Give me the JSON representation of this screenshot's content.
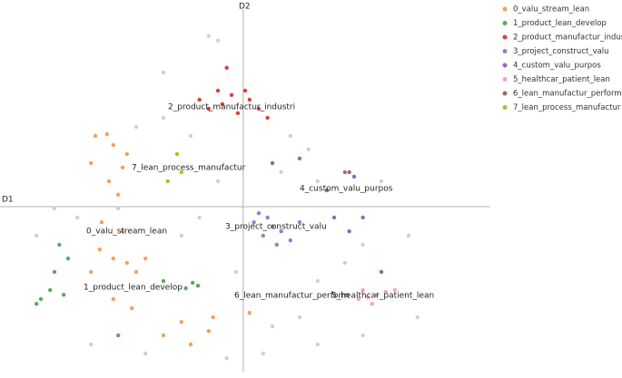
{
  "chart_data": {
    "type": "scatter",
    "xlabel": "D1",
    "ylabel": "D2",
    "xlim": [
      -5,
      5.08
    ],
    "ylim": [
      -4.55,
      5.45
    ],
    "series": [
      {
        "name": "0_valu_stream_lean",
        "color": "#f5a05a",
        "x": [
          -3.04,
          -2.8,
          -2.67,
          -3.13,
          -2.48,
          -2.76,
          -2.57,
          -2.39,
          -2.91,
          -2.48,
          -2.95,
          -2.67,
          -2.39,
          -3.13,
          -2.2,
          -2.01,
          -1.27,
          -0.71,
          -1.08,
          -0.62,
          -2.67,
          -2.29,
          -1.64,
          0.13
        ],
        "values": [
          1.95,
          2.0,
          1.7,
          1.2,
          1.08,
          0.7,
          0.33,
          1.45,
          -0.43,
          -0.68,
          -1.18,
          -1.43,
          -1.55,
          -1.8,
          -1.8,
          -1.43,
          -3.18,
          -3.43,
          -3.8,
          -3.05,
          -2.55,
          -2.8,
          -3.55,
          -2.93
        ]
      },
      {
        "name": "1_product_lean_develop",
        "color": "#5aab5a",
        "x": [
          -4.16,
          -3.97,
          -3.69,
          -3.78,
          -3.6,
          -3.88,
          -2.57,
          -1.64,
          -1.18,
          -1.04,
          -0.93,
          -4.25
        ],
        "values": [
          -2.55,
          -2.3,
          -2.43,
          -1.05,
          -1.43,
          -1.8,
          -3.55,
          -2.05,
          -2.25,
          -2.1,
          -2.18,
          -2.68
        ]
      },
      {
        "name": "2_product_manufactur_industri",
        "color": "#d9413a",
        "x": [
          -0.9,
          -0.71,
          -0.43,
          -0.24,
          -0.11,
          0.13,
          0.32,
          0.5,
          -0.34,
          -0.52,
          0.04
        ],
        "values": [
          2.95,
          2.7,
          2.83,
          3.08,
          2.58,
          2.95,
          2.7,
          2.45,
          3.83,
          3.2,
          3.2
        ]
      },
      {
        "name": "3_project_construct_valu",
        "color": "#8a86cc",
        "x": [
          0.32,
          0.5,
          0.6,
          0.78,
          0.41,
          0.97,
          0.69,
          1.16,
          0.22
        ],
        "values": [
          -0.18,
          -0.3,
          -0.55,
          -0.68,
          -0.8,
          -0.93,
          -1.05,
          -0.43,
          -0.43
        ]
      },
      {
        "name": "4_custom_valu_purpos",
        "color": "#8f6bb3",
        "x": [
          2.09,
          2.28,
          1.87,
          2.46,
          1.72,
          1.16,
          2.18
        ],
        "values": [
          0.95,
          0.83,
          -0.3,
          -0.3,
          0.45,
          1.33,
          -0.68
        ]
      },
      {
        "name": "5_healthcar_patient_lean",
        "color": "#f2a3c3",
        "x": [
          2.37,
          2.56,
          2.74,
          2.93,
          3.12,
          2.65,
          2.46
        ],
        "values": [
          -2.55,
          -2.5,
          -2.43,
          -2.35,
          -2.3,
          -2.68,
          -2.3
        ]
      },
      {
        "name": "6_lean_manufactur_perform",
        "color": "#9a6a5a",
        "x": [
          2.18,
          0.6,
          2.84
        ],
        "values": [
          0.95,
          1.2,
          -1.8
        ]
      },
      {
        "name": "7_lean_process_manufactur",
        "color": "#b8b832",
        "x": [
          -1.36,
          -1.55,
          -1.27
        ],
        "values": [
          1.45,
          0.7,
          0.95
        ]
      },
      {
        "color": "#d0d0d0",
        "x": [
          -0.71,
          -0.52,
          -1.64,
          -2.2,
          0.97,
          1.34,
          1.53,
          2.84,
          3.4,
          2.46,
          2.09,
          1.53,
          1.16,
          0.6,
          0.41,
          -0.34,
          -2.01,
          -3.13,
          -3.41,
          -3.88,
          -4.25,
          -1.27,
          -0.9,
          -1.64,
          -1.08,
          -0.52,
          0.78,
          2.46,
          3.58,
          1.53,
          -2.57,
          -0.15
        ],
        "values": [
          4.7,
          4.58,
          3.7,
          2.2,
          1.95,
          1.58,
          0.7,
          0.7,
          -0.8,
          -1.05,
          -1.55,
          -2.05,
          -3.05,
          -3.3,
          -4.05,
          -4.18,
          -4.05,
          -3.8,
          -0.3,
          -0.05,
          -0.8,
          -0.8,
          -0.3,
          2.45,
          1.95,
          0.7,
          0.95,
          -3.55,
          -3.05,
          -3.8,
          -0.05,
          -1.8
        ]
      }
    ]
  }
}
